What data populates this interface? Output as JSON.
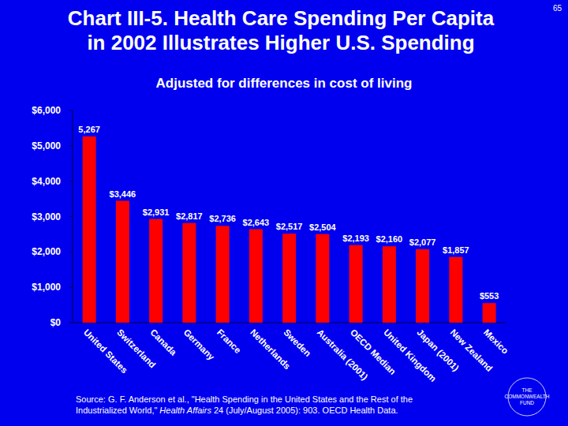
{
  "chart_data": {
    "type": "bar",
    "title": [
      "Chart III-5. Health Care Spending Per Capita",
      "in 2002 Illustrates Higher U.S. Spending"
    ],
    "subtitle": "Adjusted for differences in cost of living",
    "categories": [
      "United States",
      "Switzerland",
      "Canada",
      "Germany",
      "France",
      "Netherlands",
      "Sweden",
      "Australia (2001)",
      "OECD Median",
      "United Kingdom",
      "Japan (2001)",
      "New Zealand",
      "Mexico"
    ],
    "values": [
      5267,
      3446,
      2931,
      2817,
      2736,
      2643,
      2517,
      2504,
      2193,
      2160,
      2077,
      1857,
      553
    ],
    "value_labels": [
      "5,267",
      "$3,446",
      "$2,931",
      "$2,817",
      "$2,736",
      "$2,643",
      "$2,517",
      "$2,504",
      "$2,193",
      "$2,160",
      "$2,077",
      "$1,857",
      "$553"
    ],
    "color": "#ff0000",
    "ylim": [
      0,
      6000
    ],
    "yticks": [
      {
        "value": 0,
        "label": "$0"
      },
      {
        "value": 1000,
        "label": "$1,000"
      },
      {
        "value": 2000,
        "label": "$2,000"
      },
      {
        "value": 3000,
        "label": "$3,000"
      },
      {
        "value": 4000,
        "label": "$4,000"
      },
      {
        "value": 5000,
        "label": "$5,000"
      },
      {
        "value": 6000,
        "label": "$6,000"
      }
    ],
    "grid": false,
    "data_labels": true,
    "source": [
      "Source: G. F. Anderson et al., \"Health Spending in the United States and the Rest of the",
      "Industrialized World,\"",
      "Health Affairs",
      "24 (July/August 2005): 903. OECD Health Data."
    ],
    "page_number": 65,
    "logo": [
      "THE",
      "COMMONWEALTH",
      "FUND"
    ]
  }
}
